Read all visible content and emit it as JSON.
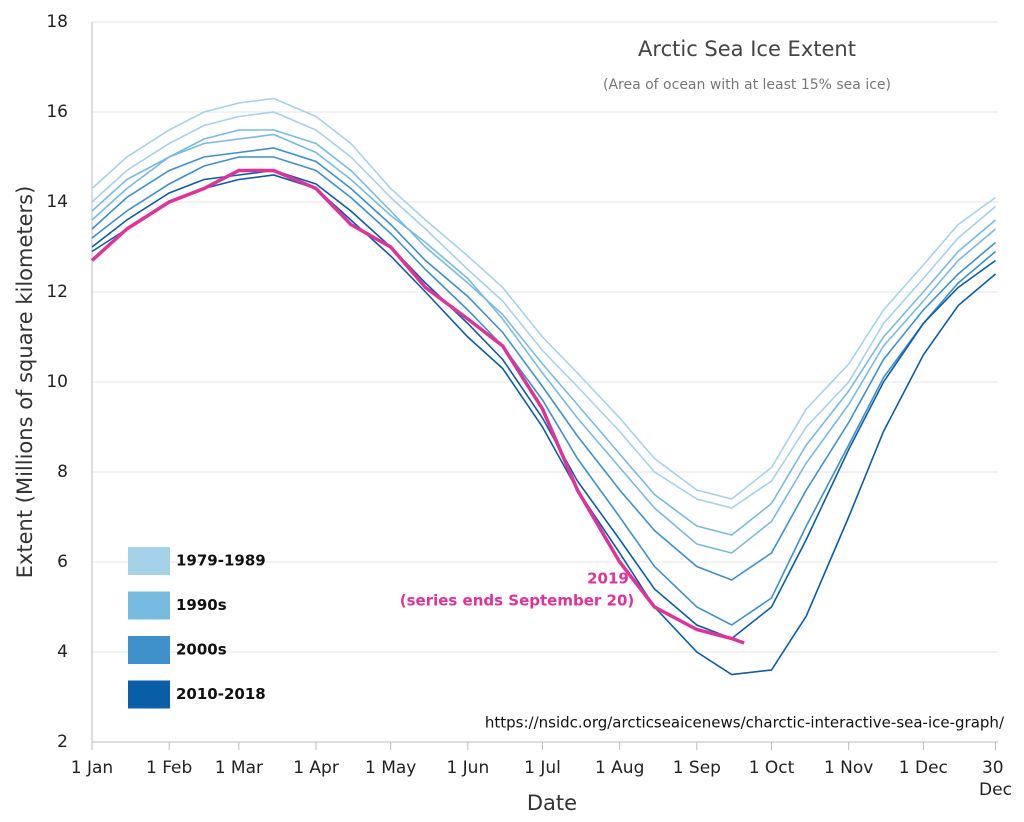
{
  "chart_data": {
    "type": "line",
    "title": "Arctic Sea Ice Extent",
    "subtitle": "(Area of ocean with at least 15% sea ice)",
    "x_label": "Date",
    "y_label": "Extent (Millions of square kilometers)",
    "source": "https://nsidc.org/arcticseaicenews/charctic-interactive-sea-ice-graph/",
    "xlim": [
      1,
      365
    ],
    "xticks": [
      {
        "value": 1,
        "label": "1 Jan"
      },
      {
        "value": 32,
        "label": "1 Feb"
      },
      {
        "value": 60,
        "label": "1 Mar"
      },
      {
        "value": 91,
        "label": "1 Apr"
      },
      {
        "value": 121,
        "label": "1 May"
      },
      {
        "value": 152,
        "label": "1 Jun"
      },
      {
        "value": 182,
        "label": "1 Jul"
      },
      {
        "value": 213,
        "label": "1 Aug"
      },
      {
        "value": 244,
        "label": "1 Sep"
      },
      {
        "value": 274,
        "label": "1 Oct"
      },
      {
        "value": 305,
        "label": "1 Nov"
      },
      {
        "value": 335,
        "label": "1 Dec"
      },
      {
        "value": 364,
        "label": "30 Dec"
      }
    ],
    "ylim": [
      2,
      18
    ],
    "yticks": [
      2,
      4,
      6,
      8,
      10,
      12,
      14,
      16,
      18
    ],
    "grid": true,
    "legend": "lower left",
    "x": [
      1,
      15,
      32,
      46,
      60,
      74,
      91,
      105,
      121,
      135,
      152,
      166,
      182,
      196,
      213,
      227,
      244,
      258,
      274,
      288,
      305,
      319,
      335,
      349,
      364
    ],
    "series": [
      {
        "name": "1979-1989",
        "color": "#a6d2e9",
        "lines": [
          [
            14.0,
            14.7,
            15.3,
            15.7,
            15.9,
            16.0,
            15.6,
            15.0,
            14.1,
            13.4,
            12.5,
            11.8,
            10.7,
            9.9,
            8.9,
            8.0,
            7.4,
            7.2,
            7.8,
            9.0,
            10.0,
            11.3,
            12.3,
            13.2,
            13.9
          ],
          [
            14.3,
            15.0,
            15.6,
            16.0,
            16.2,
            16.3,
            15.9,
            15.3,
            14.3,
            13.6,
            12.8,
            12.1,
            11.0,
            10.2,
            9.2,
            8.3,
            7.6,
            7.4,
            8.1,
            9.4,
            10.4,
            11.6,
            12.6,
            13.5,
            14.1
          ]
        ]
      },
      {
        "name": "1990s",
        "color": "#78bbe0",
        "lines": [
          [
            13.8,
            14.5,
            15.0,
            15.4,
            15.6,
            15.6,
            15.3,
            14.7,
            13.8,
            13.0,
            12.2,
            11.5,
            10.4,
            9.5,
            8.4,
            7.5,
            6.8,
            6.6,
            7.3,
            8.6,
            9.8,
            11.0,
            12.0,
            12.9,
            13.6
          ],
          [
            13.6,
            14.3,
            15.0,
            15.3,
            15.4,
            15.5,
            15.1,
            14.5,
            13.7,
            13.1,
            12.3,
            11.4,
            10.2,
            9.2,
            8.1,
            7.2,
            6.4,
            6.2,
            6.9,
            8.2,
            9.5,
            10.8,
            11.8,
            12.7,
            13.4
          ]
        ]
      },
      {
        "name": "2000s",
        "color": "#3e91ca",
        "lines": [
          [
            13.4,
            14.1,
            14.7,
            15.0,
            15.1,
            15.2,
            14.9,
            14.3,
            13.5,
            12.7,
            11.9,
            11.1,
            9.9,
            8.8,
            7.6,
            6.7,
            5.9,
            5.6,
            6.2,
            7.6,
            9.1,
            10.5,
            11.6,
            12.4,
            13.1
          ],
          [
            13.2,
            13.8,
            14.4,
            14.8,
            15.0,
            15.0,
            14.7,
            14.1,
            13.3,
            12.5,
            11.6,
            10.8,
            9.6,
            8.3,
            7.0,
            5.9,
            5.0,
            4.6,
            5.2,
            6.8,
            8.6,
            10.1,
            11.3,
            12.2,
            12.9
          ]
        ]
      },
      {
        "name": "2010-2018",
        "color": "#0a5ea8",
        "lines": [
          [
            13.0,
            13.6,
            14.2,
            14.5,
            14.6,
            14.7,
            14.4,
            13.8,
            13.0,
            12.2,
            11.3,
            10.5,
            9.2,
            7.8,
            6.5,
            5.4,
            4.6,
            4.3,
            5.0,
            6.5,
            8.5,
            10.0,
            11.3,
            12.1,
            12.7
          ],
          [
            12.9,
            13.4,
            14.0,
            14.3,
            14.5,
            14.6,
            14.3,
            13.6,
            12.8,
            12.0,
            11.0,
            10.3,
            9.0,
            7.6,
            6.2,
            5.0,
            4.0,
            3.5,
            3.6,
            4.8,
            7.0,
            8.9,
            10.6,
            11.7,
            12.4
          ]
        ]
      }
    ],
    "highlight": {
      "name": "2019",
      "note": "(series ends September 20)",
      "color": "#e0339a",
      "x": [
        1,
        15,
        32,
        46,
        60,
        74,
        91,
        105,
        121,
        135,
        152,
        166,
        182,
        196,
        213,
        227,
        244,
        258,
        263
      ],
      "values": [
        12.7,
        13.4,
        14.0,
        14.3,
        14.7,
        14.7,
        14.3,
        13.5,
        13.0,
        12.1,
        11.4,
        10.8,
        9.4,
        7.6,
        6.0,
        5.0,
        4.5,
        4.3,
        4.2
      ]
    }
  }
}
